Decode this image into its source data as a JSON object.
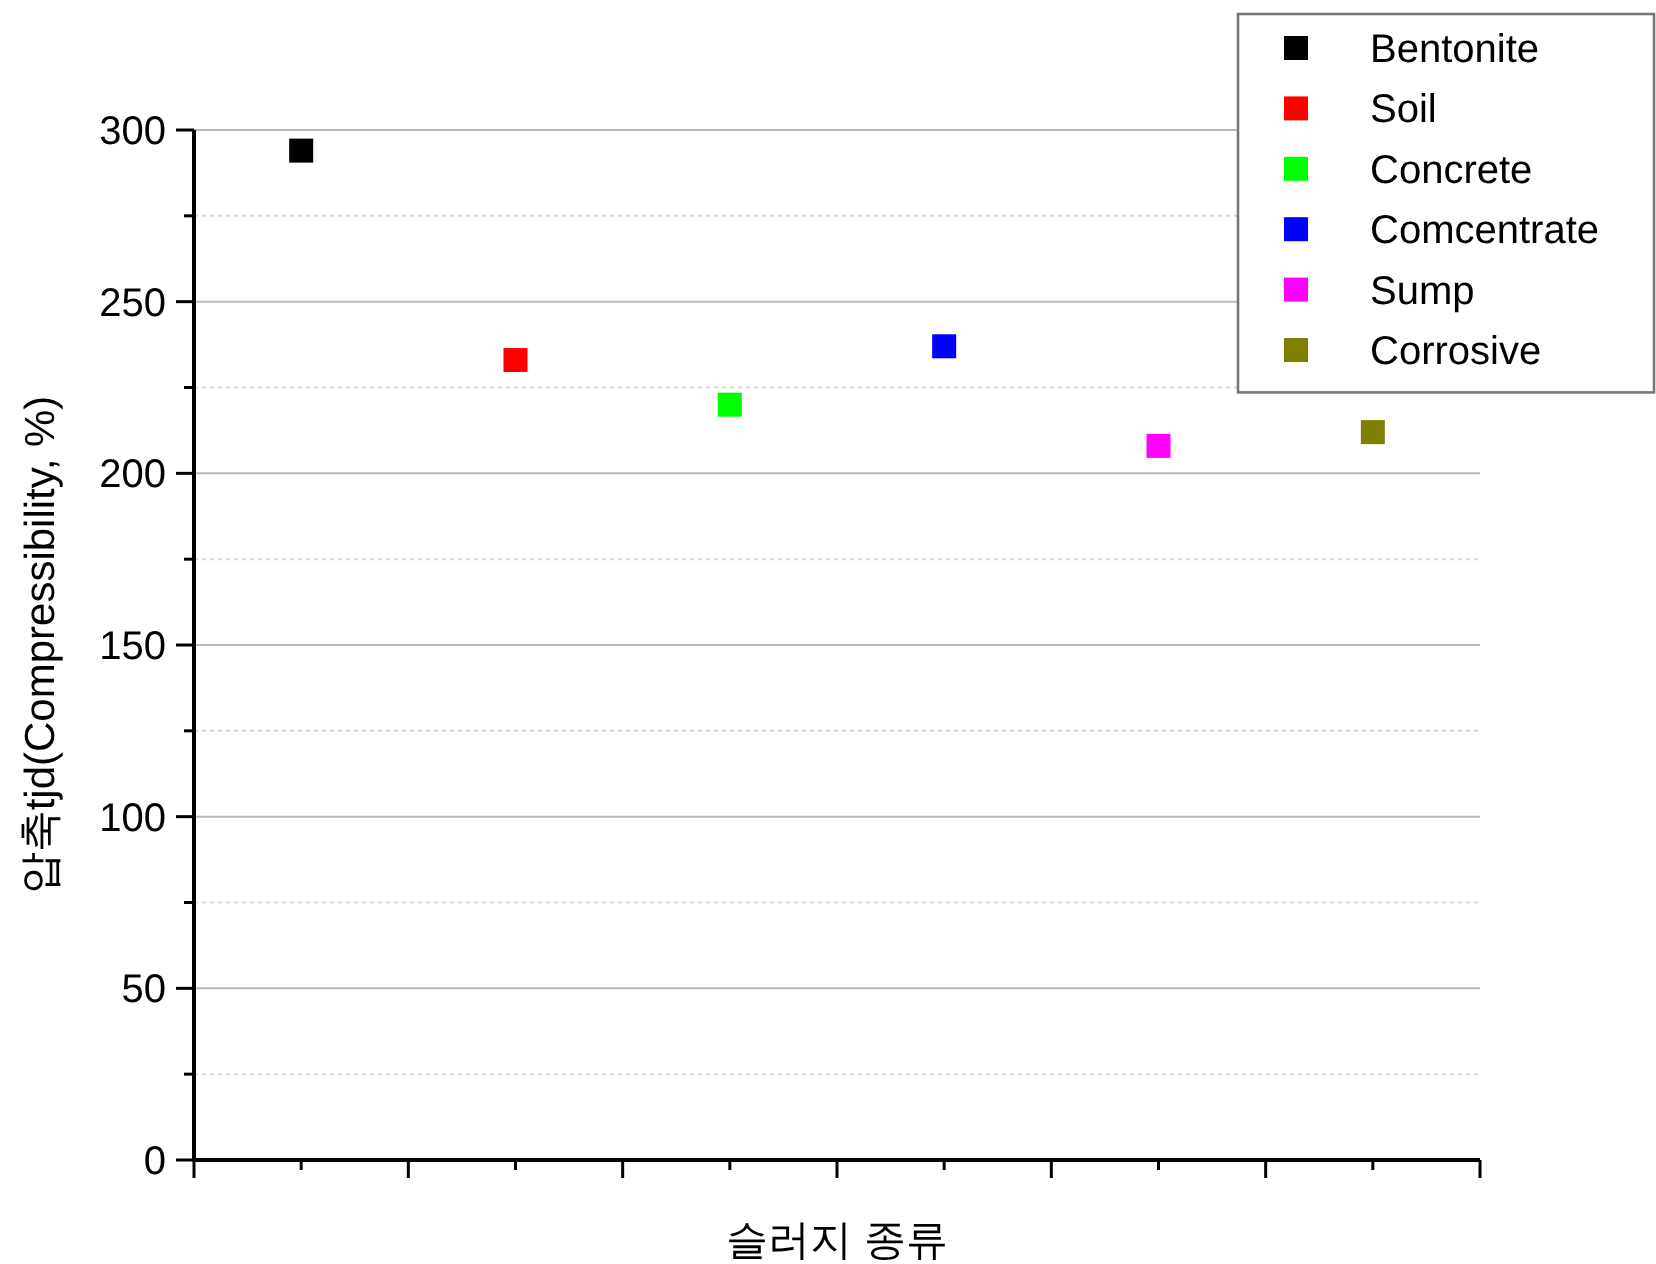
{
  "chart_data": {
    "type": "scatter",
    "xlabel": "슬러지 종류",
    "ylabel": "압축tjd(Compressibility, %)",
    "categories": [
      null,
      null,
      null,
      null,
      null,
      null
    ],
    "series": [
      {
        "name": "Bentonite",
        "color": "#000000",
        "values": [
          294,
          null,
          null,
          null,
          null,
          null
        ]
      },
      {
        "name": "Soil",
        "color": "#ff0000",
        "values": [
          null,
          233,
          null,
          null,
          null,
          null
        ]
      },
      {
        "name": "Concrete",
        "color": "#00ff00",
        "values": [
          null,
          null,
          220,
          null,
          null,
          null
        ]
      },
      {
        "name": "Comcentrate",
        "color": "#0000ff",
        "values": [
          null,
          null,
          null,
          237,
          null,
          null
        ]
      },
      {
        "name": "Sump",
        "color": "#ff00ff",
        "values": [
          null,
          null,
          null,
          null,
          208,
          null
        ]
      },
      {
        "name": "Corrosive",
        "color": "#808000",
        "values": [
          null,
          null,
          null,
          null,
          null,
          212
        ]
      }
    ],
    "ylim": [
      0,
      300
    ],
    "yticks": [
      0,
      {
        "value": 25,
        "label": null
      },
      50,
      {
        "value": 75,
        "label": null
      },
      100,
      {
        "value": 125,
        "label": null
      },
      150,
      {
        "value": 175,
        "label": null
      },
      200,
      {
        "value": 225,
        "label": null
      },
      250,
      {
        "value": 275,
        "label": null
      },
      300
    ],
    "grid": "y",
    "legend": "top right",
    "marker": "square"
  }
}
